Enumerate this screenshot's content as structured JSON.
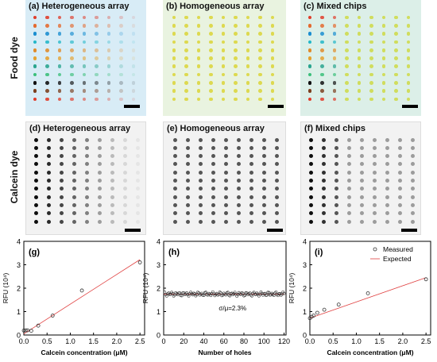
{
  "row_labels": {
    "food": "Food dye",
    "calcein": "Calcein dye"
  },
  "panels": {
    "a": "(a) Heterogeneous array",
    "b": "(b) Homogeneous array",
    "c": "(c) Mixed chips",
    "d": "(d) Heterogeneous array",
    "e": "(e) Homogeneous array",
    "f": "(f) Mixed chips"
  },
  "colors": {
    "food_bg_a": "#d8ecf6",
    "food_bg_b": "#e9f3e0",
    "food_bg_c": "#dcefe8",
    "food_row_colors": [
      "#e03c2a",
      "#e46a2f",
      "#1b8ed0",
      "#22b7c8",
      "#e08b2a",
      "#e5a12f",
      "#2aa58f",
      "#3bbf7a",
      "#101010",
      "#7b3f1e"
    ],
    "homog_color": "#d9d22a",
    "mixed_right_color": "#cdd83a",
    "calcein_bg": "#f2f2f2",
    "line_red": "#e04040",
    "marker": "#333333"
  },
  "chart_data": [
    {
      "panel": "(g)",
      "type": "scatter",
      "xlabel": "Calcein concentration (μM)",
      "ylabel": "RFU (10⁴)",
      "xlim": [
        0,
        2.6
      ],
      "ylim": [
        0,
        4
      ],
      "xticks": [
        "0.0",
        "0.5",
        "1.0",
        "1.5",
        "2.0",
        "2.5"
      ],
      "yticks": [
        "0",
        "1",
        "2",
        "3",
        "4"
      ],
      "x": [
        0.0,
        0.04,
        0.08,
        0.16,
        0.31,
        0.62,
        1.25,
        2.5
      ],
      "y": [
        0.19,
        0.2,
        0.2,
        0.18,
        0.4,
        0.83,
        1.9,
        3.1
      ],
      "fit": {
        "x": [
          0.0,
          2.5
        ],
        "y": [
          0.05,
          3.22
        ]
      }
    },
    {
      "panel": "(h)",
      "type": "scatter",
      "xlabel": "Number of holes",
      "ylabel": "RFU (10⁴)",
      "xlim": [
        0,
        122
      ],
      "ylim": [
        0,
        4
      ],
      "xticks": [
        "0",
        "20",
        "40",
        "60",
        "80",
        "100",
        "120"
      ],
      "yticks": [
        "0",
        "1",
        "2",
        "3",
        "4"
      ],
      "annotation": "σ/μ=2.3%",
      "mean": 1.75,
      "n": 120
    },
    {
      "panel": "(i)",
      "type": "scatter",
      "xlabel": "Calcein concentration (μM)",
      "ylabel": "RFU (10⁴)",
      "xlim": [
        0,
        2.6
      ],
      "ylim": [
        0,
        4
      ],
      "xticks": [
        "0.0",
        "0.5",
        "1.0",
        "1.5",
        "2.0",
        "2.5"
      ],
      "yticks": [
        "0",
        "1",
        "2",
        "3",
        "4"
      ],
      "legend": [
        "Measured",
        "Expected"
      ],
      "legend_position": "top-right",
      "x": [
        0.0,
        0.04,
        0.08,
        0.16,
        0.31,
        0.62,
        1.25,
        2.5
      ],
      "y": [
        0.72,
        0.78,
        0.83,
        0.95,
        1.08,
        1.3,
        1.78,
        2.38
      ],
      "fit": {
        "x": [
          0.0,
          2.5
        ],
        "y": [
          0.72,
          2.45
        ]
      }
    }
  ]
}
